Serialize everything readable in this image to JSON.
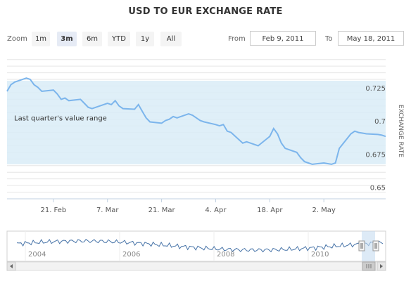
{
  "title": "USD TO EUR EXCHANGE RATE",
  "zoom": {
    "label": "Zoom",
    "buttons": [
      "1m",
      "3m",
      "6m",
      "YTD",
      "1y",
      "All"
    ],
    "selected": "3m"
  },
  "range": {
    "from_label": "From",
    "from_value": "Feb 9, 2011",
    "to_label": "To",
    "to_value": "May 18, 2011"
  },
  "colors": {
    "line": "#7cb5ec",
    "band": "#d9ecf7",
    "navigator_mask": "#c6dcf0"
  },
  "chart_data": {
    "type": "line",
    "title": "USD TO EUR EXCHANGE RATE",
    "ylabel": "EXCHANGE RATE",
    "ylim": [
      0.645,
      0.7525
    ],
    "yticks": [
      0.65,
      0.675,
      0.7,
      0.725
    ],
    "xlim": [
      "2011-02-09",
      "2011-05-18"
    ],
    "xticks": [
      {
        "date": "2011-02-21",
        "label": "21. Feb"
      },
      {
        "date": "2011-03-07",
        "label": "7. Mar"
      },
      {
        "date": "2011-03-21",
        "label": "21. Mar"
      },
      {
        "date": "2011-04-04",
        "label": "4. Apr"
      },
      {
        "date": "2011-04-18",
        "label": "18. Apr"
      },
      {
        "date": "2011-05-02",
        "label": "2. May"
      }
    ],
    "plot_band": {
      "from": 0.671,
      "to": 0.734,
      "label": "Last quarter's value range"
    },
    "series": [
      {
        "x": [
          "2011-02-09",
          "2011-02-10",
          "2011-02-11",
          "2011-02-14",
          "2011-02-15",
          "2011-02-16",
          "2011-02-17",
          "2011-02-18",
          "2011-02-21",
          "2011-02-22",
          "2011-02-23",
          "2011-02-24",
          "2011-02-25",
          "2011-02-28",
          "2011-03-01",
          "2011-03-02",
          "2011-03-03",
          "2011-03-04",
          "2011-03-07",
          "2011-03-08",
          "2011-03-09",
          "2011-03-10",
          "2011-03-11",
          "2011-03-14",
          "2011-03-15",
          "2011-03-16",
          "2011-03-17",
          "2011-03-18",
          "2011-03-21",
          "2011-03-22",
          "2011-03-23",
          "2011-03-24",
          "2011-03-25",
          "2011-03-28",
          "2011-03-29",
          "2011-03-30",
          "2011-03-31",
          "2011-04-01",
          "2011-04-04",
          "2011-04-05",
          "2011-04-06",
          "2011-04-07",
          "2011-04-08",
          "2011-04-11",
          "2011-04-12",
          "2011-04-13",
          "2011-04-14",
          "2011-04-15",
          "2011-04-18",
          "2011-04-19",
          "2011-04-20",
          "2011-04-21",
          "2011-04-22",
          "2011-04-25",
          "2011-04-26",
          "2011-04-27",
          "2011-04-28",
          "2011-04-29",
          "2011-05-02",
          "2011-05-03",
          "2011-05-04",
          "2011-05-05",
          "2011-05-06",
          "2011-05-09",
          "2011-05-10",
          "2011-05-11",
          "2011-05-12",
          "2011-05-13",
          "2011-05-16",
          "2011-05-17",
          "2011-05-18"
        ],
        "y": [
          0.726,
          0.731,
          0.733,
          0.736,
          0.735,
          0.731,
          0.729,
          0.726,
          0.727,
          0.724,
          0.72,
          0.721,
          0.719,
          0.72,
          0.717,
          0.714,
          0.713,
          0.714,
          0.717,
          0.716,
          0.719,
          0.715,
          0.713,
          0.7125,
          0.716,
          0.711,
          0.706,
          0.703,
          0.702,
          0.704,
          0.705,
          0.707,
          0.706,
          0.709,
          0.708,
          0.706,
          0.704,
          0.703,
          0.701,
          0.7,
          0.701,
          0.696,
          0.695,
          0.687,
          0.688,
          0.687,
          0.686,
          0.685,
          0.692,
          0.698,
          0.694,
          0.687,
          0.683,
          0.68,
          0.676,
          0.673,
          0.672,
          0.671,
          0.672,
          0.6715,
          0.671,
          0.672,
          0.683,
          0.694,
          0.696,
          0.695,
          0.6945,
          0.694,
          0.6935,
          0.693,
          0.692
        ]
      }
    ],
    "navigator": {
      "xticks": [
        "2004",
        "2006",
        "2008",
        "2010"
      ]
    }
  }
}
